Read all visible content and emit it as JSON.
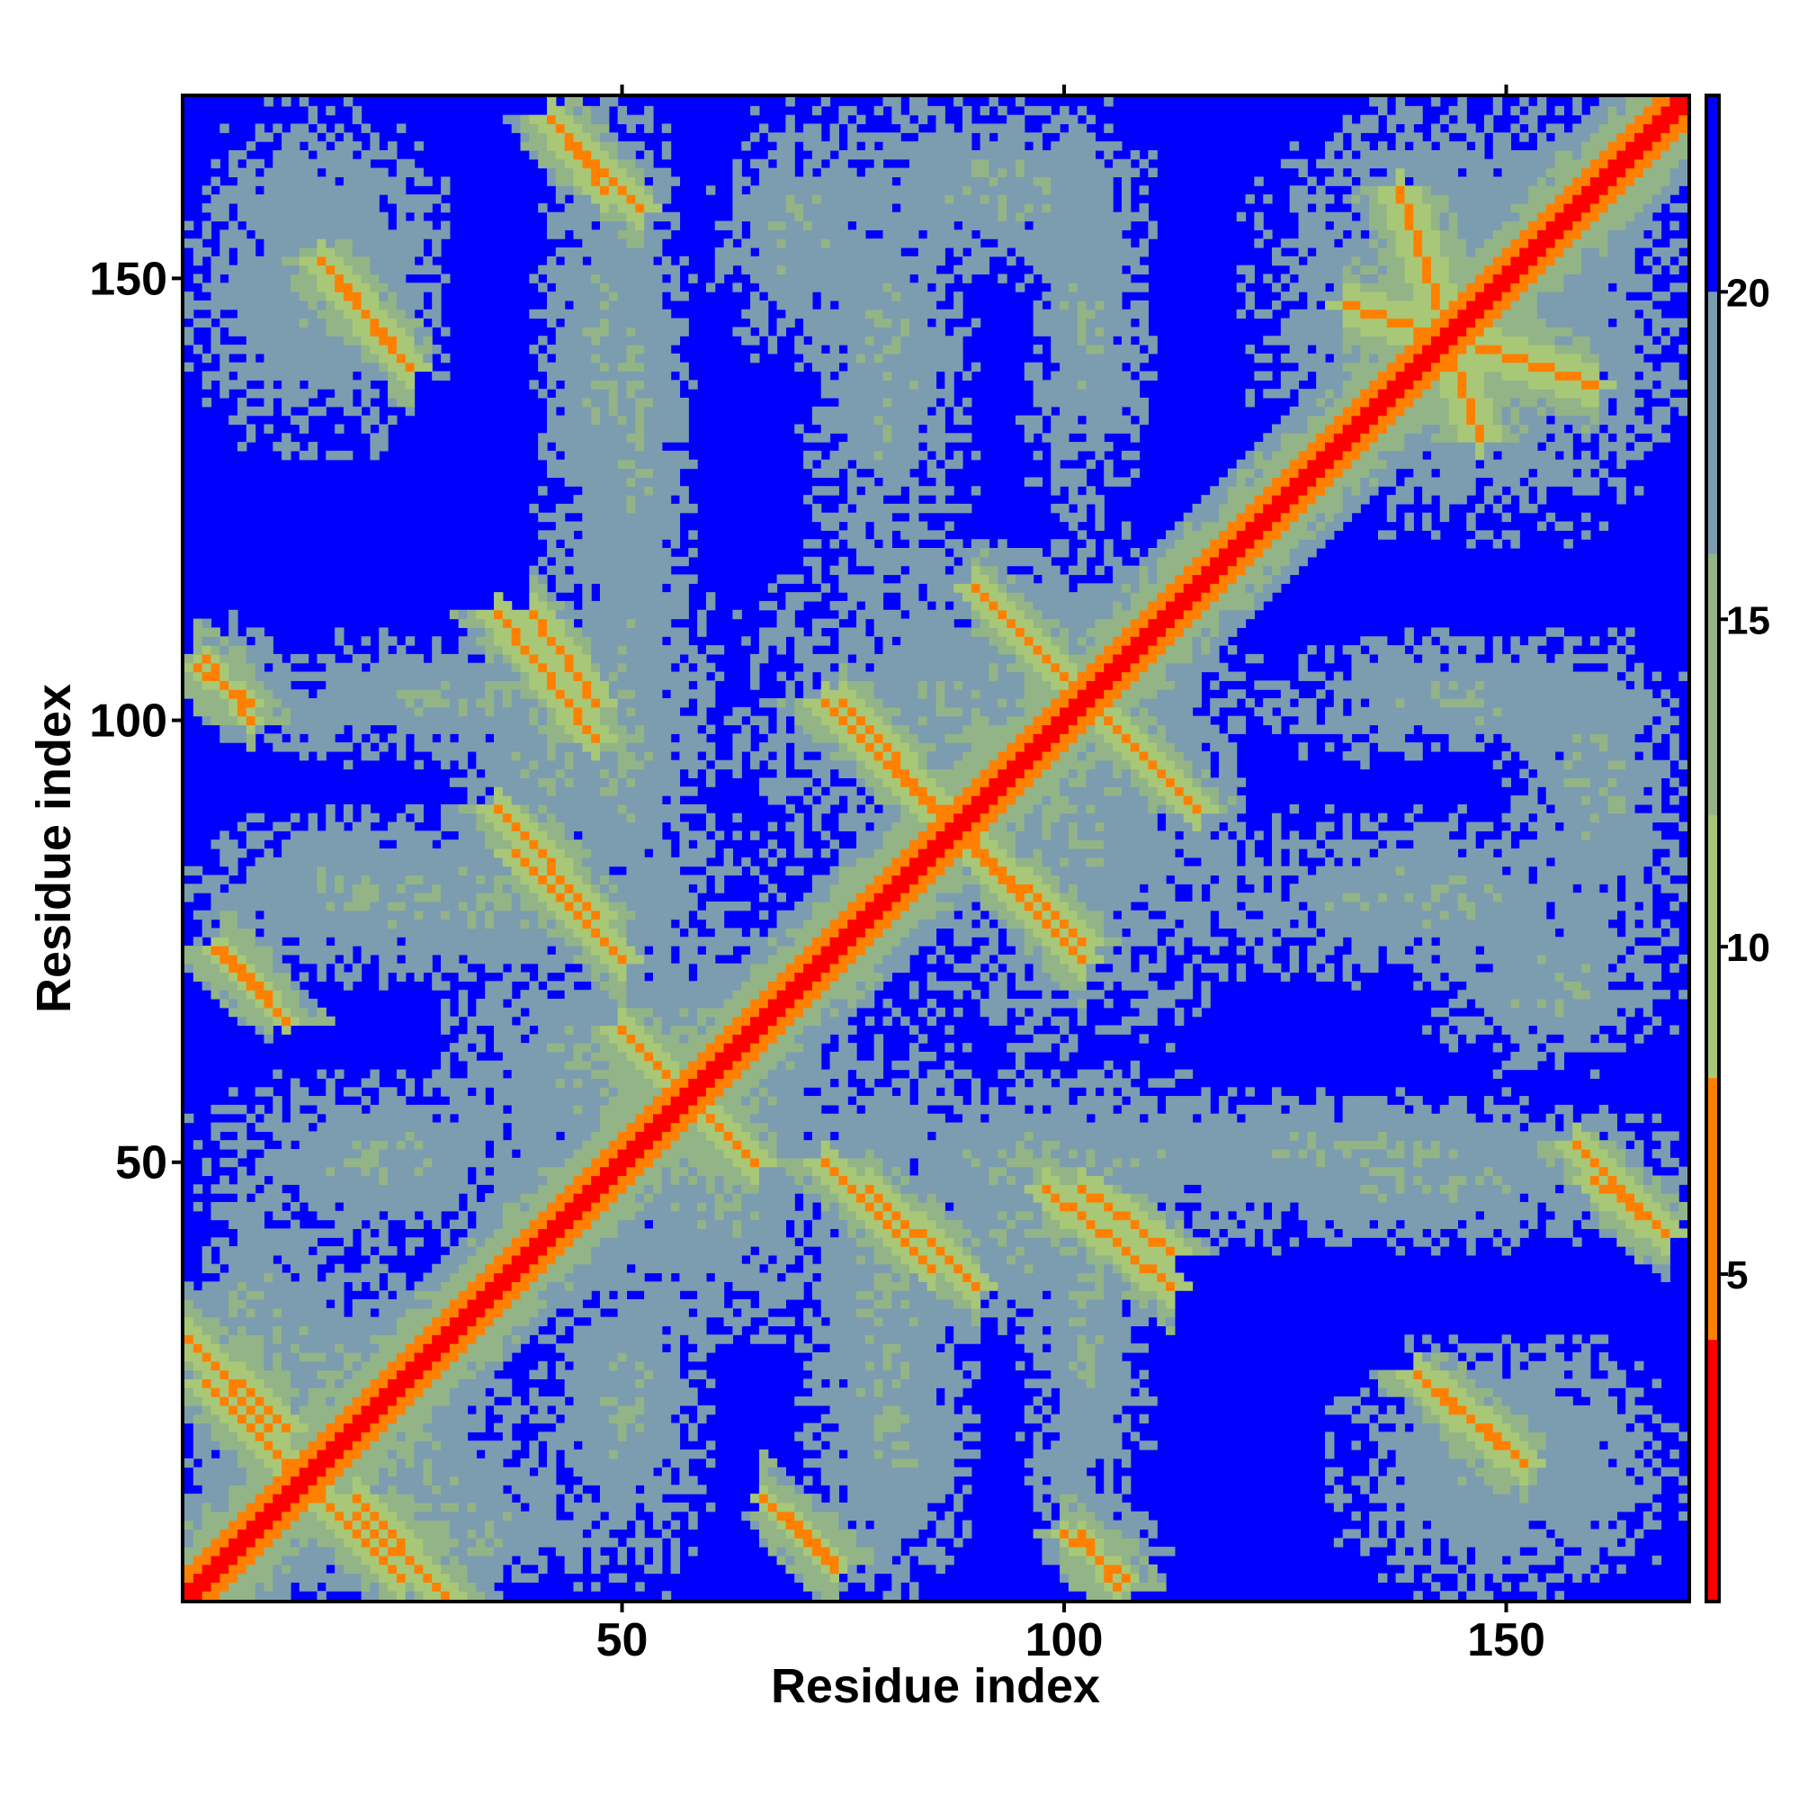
{
  "chart_data": {
    "type": "heatmap",
    "title": "",
    "xlabel": "Residue index",
    "ylabel": "Residue index",
    "n_residues": 170,
    "xlim": [
      1,
      170
    ],
    "ylim": [
      1,
      170
    ],
    "x_ticks": [
      50,
      100,
      150
    ],
    "x_tick_labels": [
      "50",
      "100",
      "150"
    ],
    "y_ticks": [
      50,
      100,
      150
    ],
    "y_tick_labels": [
      "50",
      "100",
      "150"
    ],
    "colorbar": {
      "range": [
        0,
        23
      ],
      "ticks": [
        5,
        10,
        15,
        20
      ],
      "tick_labels": [
        "5",
        "10",
        "15",
        "20"
      ],
      "bins": [
        {
          "from": 0,
          "to": 4,
          "color": "#ff0000"
        },
        {
          "from": 4,
          "to": 8,
          "color": "#ff8000"
        },
        {
          "from": 8,
          "to": 12,
          "color": "#a8c878"
        },
        {
          "from": 12,
          "to": 16,
          "color": "#93b487"
        },
        {
          "from": 16,
          "to": 20,
          "color": "#7c9cb0"
        },
        {
          "from": 20,
          "to": 23,
          "color": "#0000ff"
        }
      ]
    },
    "background_color": "#0000ff",
    "diagonal_value": 2,
    "contact_features": [
      {
        "x": [
          3,
          25
        ],
        "y": [
          3,
          25
        ],
        "value": 6,
        "width": 3,
        "orientation": "anti"
      },
      {
        "x": [
          20,
          30
        ],
        "y": [
          1,
          12
        ],
        "value": 6,
        "width": 2,
        "orientation": "anti"
      },
      {
        "x": [
          1,
          10
        ],
        "y": [
          20,
          30
        ],
        "value": 6,
        "width": 2,
        "orientation": "anti"
      },
      {
        "x": [
          50,
          65
        ],
        "y": [
          50,
          65
        ],
        "value": 6,
        "width": 3,
        "orientation": "anti"
      },
      {
        "x": [
          36,
          47
        ],
        "y": [
          78,
          90
        ],
        "value": 6,
        "width": 2,
        "orientation": "anti"
      },
      {
        "x": [
          36,
          47
        ],
        "y": [
          98,
          112
        ],
        "value": 6,
        "width": 2,
        "orientation": "anti"
      },
      {
        "x": [
          73,
          85
        ],
        "y": [
          38,
          50
        ],
        "value": 6,
        "width": 2,
        "orientation": "anti"
      },
      {
        "x": [
          73,
          85
        ],
        "y": [
          90,
          102
        ],
        "value": 6,
        "width": 2,
        "orientation": "anti"
      },
      {
        "x": [
          89,
          102
        ],
        "y": [
          75,
          87
        ],
        "value": 6,
        "width": 2,
        "orientation": "anti"
      },
      {
        "x": [
          105,
          115
        ],
        "y": [
          90,
          100
        ],
        "value": 6,
        "width": 2,
        "orientation": "anti"
      },
      {
        "x": [
          102,
          112
        ],
        "y": [
          40,
          47
        ],
        "value": 6,
        "width": 2,
        "orientation": "anti"
      },
      {
        "x": [
          42,
          48
        ],
        "y": [
          160,
          168
        ],
        "value": 6,
        "width": 2,
        "orientation": "anti"
      },
      {
        "x": [
          16,
          24
        ],
        "y": [
          142,
          152
        ],
        "value": 6,
        "width": 2,
        "orientation": "anti"
      },
      {
        "x": [
          138,
          147
        ],
        "y": [
          132,
          160
        ],
        "value": 6,
        "width": 2,
        "orientation": "anti"
      },
      {
        "x": [
          158,
          166
        ],
        "y": [
          44,
          52
        ],
        "value": 6,
        "width": 2,
        "orientation": "anti"
      },
      {
        "x": [
          140,
          150
        ],
        "y": [
          18,
          26
        ],
        "value": 6,
        "width": 2,
        "orientation": "anti"
      },
      {
        "x": [
          102,
          106
        ],
        "y": [
          2,
          8
        ],
        "value": 6,
        "width": 1,
        "orientation": "anti"
      },
      {
        "x": [
          69,
          74
        ],
        "y": [
          5,
          10
        ],
        "value": 6,
        "width": 1,
        "orientation": "anti"
      },
      {
        "x": [
          4,
          12
        ],
        "y": [
          66,
          74
        ],
        "value": 6,
        "width": 1,
        "orientation": "anti"
      },
      {
        "x": [
          3,
          8
        ],
        "y": [
          100,
          107
        ],
        "value": 6,
        "width": 1,
        "orientation": "anti"
      }
    ],
    "region_blobs": [
      {
        "x": [
          1,
          30
        ],
        "y": [
          1,
          40
        ],
        "value": 13
      },
      {
        "x": [
          15,
          45
        ],
        "y": [
          1,
          15
        ],
        "value": 13
      },
      {
        "x": [
          45,
          75
        ],
        "y": [
          30,
          75
        ],
        "value": 13
      },
      {
        "x": [
          1,
          45
        ],
        "y": [
          40,
          60
        ],
        "value": 14
      },
      {
        "x": [
          1,
          70
        ],
        "y": [
          70,
          90
        ],
        "value": 14
      },
      {
        "x": [
          30,
          55
        ],
        "y": [
          80,
          110
        ],
        "value": 14
      },
      {
        "x": [
          60,
          120
        ],
        "y": [
          80,
          120
        ],
        "value": 14
      },
      {
        "x": [
          70,
          130
        ],
        "y": [
          40,
          60
        ],
        "value": 14
      },
      {
        "x": [
          100,
          170
        ],
        "y": [
          45,
          58
        ],
        "value": 14
      },
      {
        "x": [
          110,
          170
        ],
        "y": [
          70,
          90
        ],
        "value": 14
      },
      {
        "x": [
          120,
          170
        ],
        "y": [
          95,
          110
        ],
        "value": 14
      },
      {
        "x": [
          120,
          170
        ],
        "y": [
          125,
          170
        ],
        "value": 14
      },
      {
        "x": [
          40,
          55
        ],
        "y": [
          110,
          170
        ],
        "value": 14
      },
      {
        "x": [
          1,
          30
        ],
        "y": [
          130,
          170
        ],
        "value": 14
      },
      {
        "x": [
          75,
          110
        ],
        "y": [
          150,
          170
        ],
        "value": 14
      },
      {
        "x": [
          95,
          110
        ],
        "y": [
          1,
          60
        ],
        "value": 14
      },
      {
        "x": [
          135,
          165
        ],
        "y": [
          1,
          30
        ],
        "value": 14
      },
      {
        "x": [
          1,
          12
        ],
        "y": [
          98,
          112
        ],
        "value": 14
      },
      {
        "x": [
          70,
          90
        ],
        "y": [
          1,
          40
        ],
        "value": 14
      },
      {
        "x": [
          140,
          170
        ],
        "y": [
          60,
          80
        ],
        "value": 14
      }
    ]
  }
}
